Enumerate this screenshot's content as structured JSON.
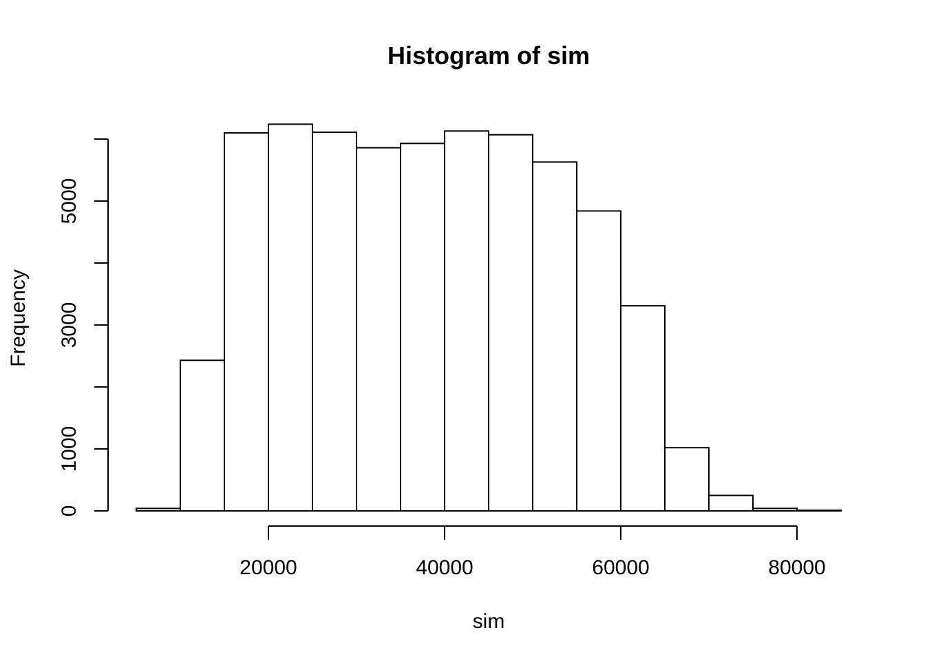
{
  "chart_data": {
    "type": "bar",
    "title": "Histogram of sim",
    "xlabel": "sim",
    "ylabel": "Frequency",
    "bin_edges": [
      5000,
      10000,
      15000,
      20000,
      25000,
      30000,
      35000,
      40000,
      45000,
      50000,
      55000,
      60000,
      65000,
      70000,
      75000,
      80000,
      85000
    ],
    "values": [
      40,
      2430,
      6100,
      6240,
      6110,
      5860,
      5930,
      6130,
      6070,
      5630,
      4840,
      3310,
      1020,
      250,
      40,
      10
    ],
    "x_axis": {
      "ticks": [
        20000,
        40000,
        60000,
        80000
      ],
      "tick_labels": [
        "20000",
        "40000",
        "60000",
        "80000"
      ],
      "range": [
        20000,
        80000
      ]
    },
    "y_axis": {
      "ticks": [
        0,
        1000,
        2000,
        3000,
        4000,
        5000,
        6000
      ],
      "tick_labels": [
        "0",
        "1000",
        "",
        "3000",
        "",
        "5000",
        ""
      ],
      "range": [
        0,
        6000
      ]
    },
    "grid": false
  }
}
